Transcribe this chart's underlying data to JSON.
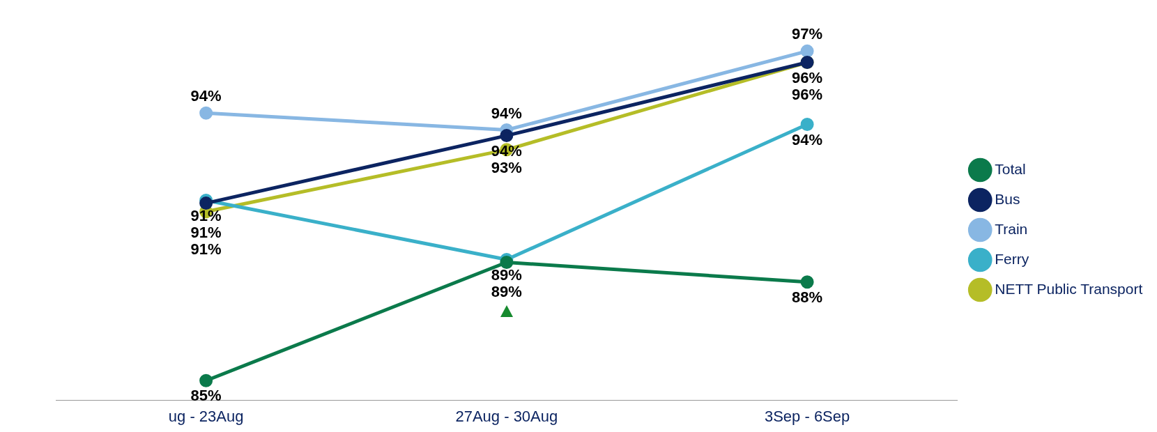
{
  "chart_data": {
    "type": "line",
    "categories": [
      "ug - 23Aug",
      "27Aug - 30Aug",
      "3Sep - 6Sep"
    ],
    "series": [
      {
        "name": "Total",
        "color": "#0b7a4b",
        "values": [
          84.9,
          89.1,
          88.4
        ],
        "value_labels": [
          "85%",
          "89%",
          "88%"
        ]
      },
      {
        "name": "Bus",
        "color": "#0c2461",
        "values": [
          91.2,
          93.6,
          96.2
        ],
        "value_labels": [
          "91%",
          "94%",
          "96%"
        ]
      },
      {
        "name": "Train",
        "color": "#88b7e3",
        "values": [
          94.4,
          93.8,
          96.6
        ],
        "value_labels": [
          "94%",
          "94%",
          "97%"
        ]
      },
      {
        "name": "Ferry",
        "color": "#3ab0c9",
        "values": [
          91.3,
          89.2,
          94.0
        ],
        "value_labels": [
          "91%",
          "89%",
          "94%"
        ]
      },
      {
        "name": "NETT Public Transport",
        "color": "#b5bd27",
        "values": [
          90.9,
          93.1,
          96.2
        ],
        "value_labels": [
          "91%",
          "93%",
          "96%"
        ]
      }
    ],
    "marker": "circle",
    "legend": "right",
    "grid": false
  }
}
